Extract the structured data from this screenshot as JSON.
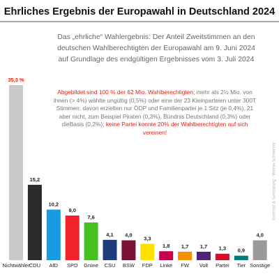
{
  "chart_data": {
    "type": "bar",
    "title": "Ehrliches Ergebnis der Europawahl in Deutschland 2024",
    "subtitle": [
      "Das „ehrliche“ Wahlergebnis: Der Anteil Zweitstimmen an den",
      "deutschen Wahlberechtigten der Europawahl am 9. Juni 2024",
      "auf Grundlage des endgültigen Ergebnisses vom 3. Juli 2024"
    ],
    "annotation": [
      {
        "text": "Abgebildet sind 100 % der 62 Mio. Wahlberechtigten;",
        "color": "#e2231a"
      },
      {
        "text": " mehr als 2½ Mio. von ihnen (> 4%) wählte ungültig (0,5%) oder eine der 23 Kleinparteien unter 300T Stimmen; davon erzielten nur ÖDP und Familienpartei je 1 Sitz (je 0,4%), 21 aber nicht, zum Beispiel Piraten (0,3%), Bündnis Deutschland (0,3%) oder dieBasis (0,2%); ",
        "color": "#777777"
      },
      {
        "text": "keine Partei konnte 20% der Wahlberechtigten auf sich vereinen!",
        "color": "#e2231a"
      }
    ],
    "credit": "Kontrast & Gestaltung · Winnie Schweizer",
    "categories": [
      "Nichtwähler",
      "CDU",
      "AfD",
      "SPD",
      "Grüne",
      "CSU",
      "BSW",
      "FDP",
      "Linke",
      "FW",
      "Volt",
      "Partei",
      "Tier",
      "Sonstige"
    ],
    "values": [
      35.3,
      15.2,
      10.2,
      9.0,
      7.6,
      4.1,
      4.0,
      3.3,
      1.8,
      1.7,
      1.7,
      1.3,
      0.9,
      4.0
    ],
    "value_labels": [
      "35,3 %",
      "15,2",
      "10,2",
      "9,0",
      "7,6",
      "4,1",
      "4,0",
      "3,3",
      "1,8",
      "1,7",
      "1,7",
      "1,3",
      "0,9",
      "4,0"
    ],
    "value_label_colors": [
      "#e2231a",
      "#222222",
      "#222222",
      "#222222",
      "#222222",
      "#222222",
      "#222222",
      "#222222",
      "#222222",
      "#222222",
      "#222222",
      "#222222",
      "#222222",
      "#222222"
    ],
    "colors": [
      "#c9c9c9",
      "#2b2b2b",
      "#1a9be0",
      "#f2222b",
      "#46c01e",
      "#1f3d7a",
      "#7b1233",
      "#ffe000",
      "#c7004f",
      "#f39200",
      "#502379",
      "#d0102c",
      "#007a7a",
      "#9a9a9a"
    ]
  }
}
